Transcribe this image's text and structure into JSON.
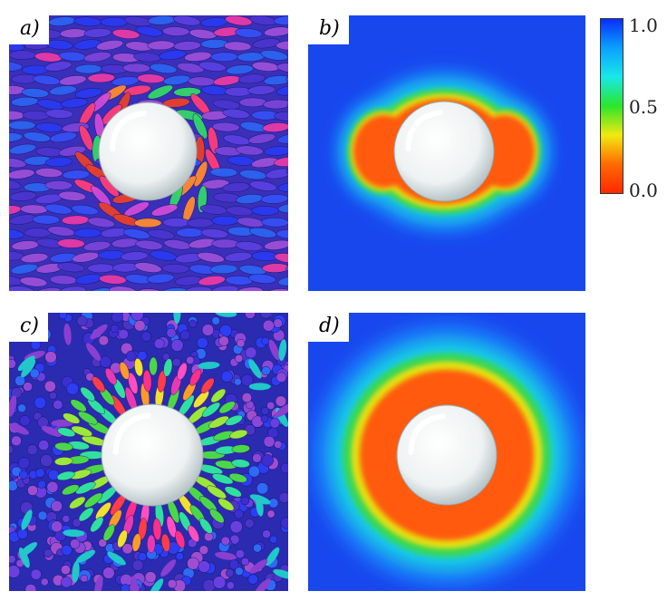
{
  "figure": {
    "panels": [
      {
        "label": "a)",
        "kind": "particle-render"
      },
      {
        "label": "b)",
        "kind": "order-map"
      },
      {
        "label": "c)",
        "kind": "particle-render"
      },
      {
        "label": "d)",
        "kind": "order-map"
      }
    ],
    "colorbar": {
      "ticks": [
        "1.0",
        "0.5",
        "0.0"
      ],
      "stops": [
        "#0a2cff",
        "#0aa0ff",
        "#19e8e8",
        "#2be62b",
        "#f0ea10",
        "#ff6a00",
        "#ff2600"
      ]
    },
    "colors": {
      "field_blue": "#1947ee",
      "sphere": "#eef2f2",
      "particle_blue": "#2f3de8",
      "particle_purple": "#8a3fd0",
      "particle_magenta": "#e83aa6"
    }
  }
}
